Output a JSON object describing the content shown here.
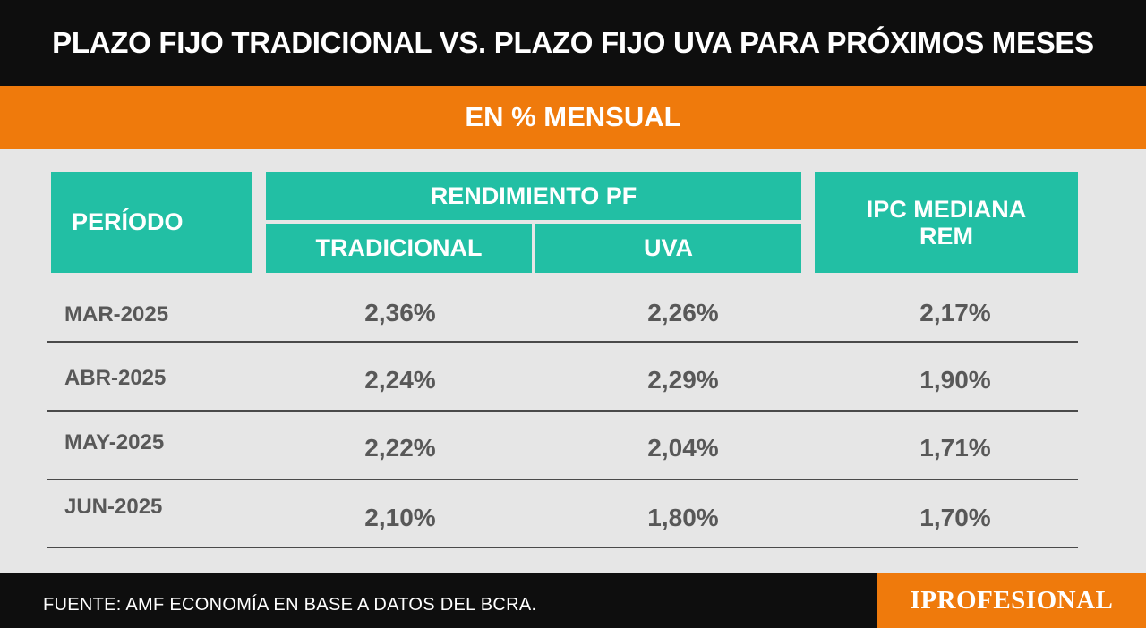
{
  "header": {
    "title": "PLAZO FIJO TRADICIONAL VS. PLAZO FIJO UVA PARA PRÓXIMOS MESES",
    "subtitle": "EN % MENSUAL"
  },
  "chart_data": {
    "type": "table",
    "columns": {
      "period": "PERÍODO",
      "group": "RENDIMIENTO PF",
      "tradicional": "TRADICIONAL",
      "uva": "UVA",
      "ipc_line1": "IPC MEDIANA",
      "ipc_line2": "REM"
    },
    "rows": [
      {
        "period": "MAR-2025",
        "tradicional": "2,36%",
        "uva": "2,26%",
        "ipc": "2,17%"
      },
      {
        "period": "ABR-2025",
        "tradicional": "2,24%",
        "uva": "2,29%",
        "ipc": "1,90%"
      },
      {
        "period": "MAY-2025",
        "tradicional": "2,22%",
        "uva": "2,04%",
        "ipc": "1,71%"
      },
      {
        "period": "JUN-2025",
        "tradicional": "2,10%",
        "uva": "1,80%",
        "ipc": "1,70%"
      }
    ]
  },
  "footer": {
    "source": "FUENTE:  AMF ECONOMÍA EN BASE A DATOS DEL BCRA.",
    "logo": "IPROFESIONAL"
  },
  "colors": {
    "header_bg": "#0e0e0e",
    "accent_orange": "#ef7a0c",
    "header_cell_teal": "#22bfa4",
    "body_bg": "#e6e6e6",
    "value_text": "#585858"
  }
}
